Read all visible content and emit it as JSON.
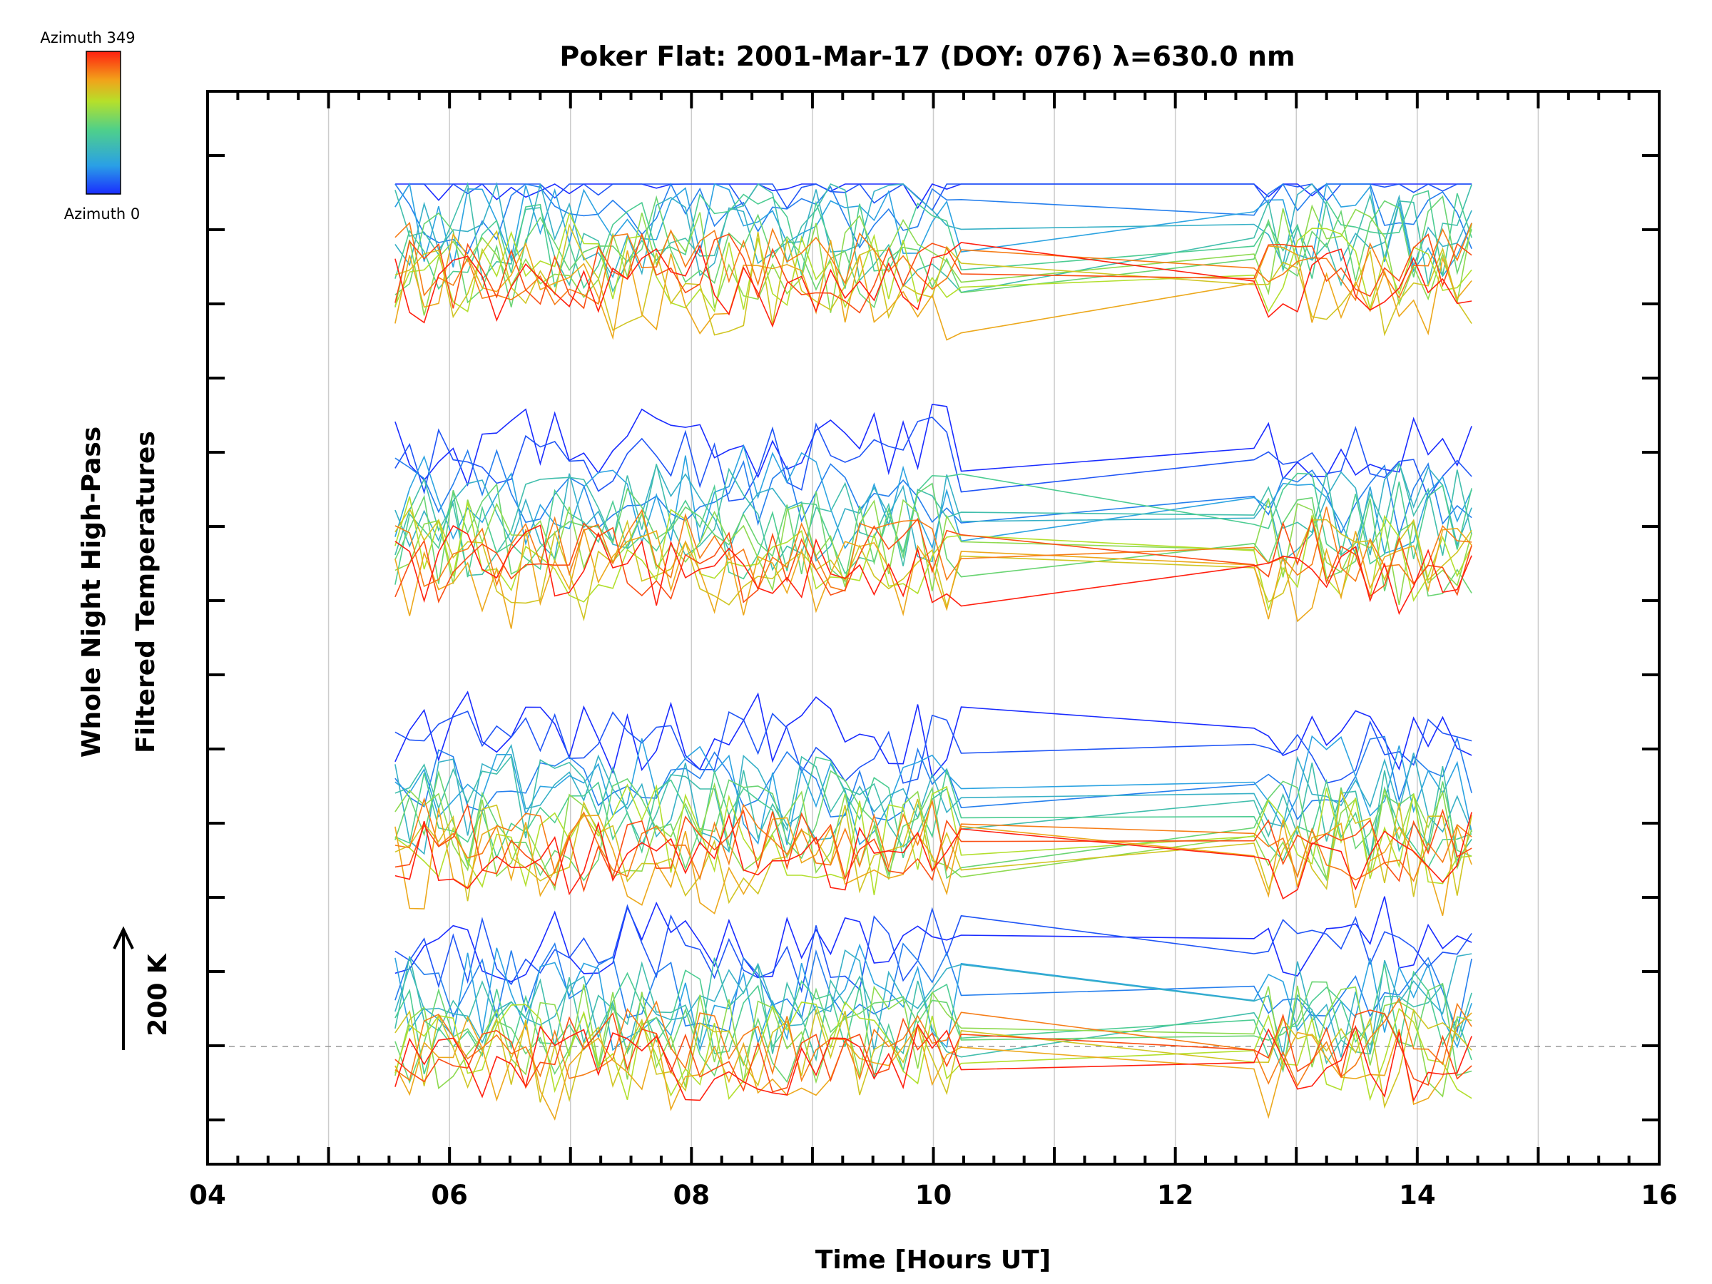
{
  "chart_data": {
    "type": "line",
    "title": "Poker Flat: 2001-Mar-17 (DOY: 076) λ=630.0 nm",
    "xlabel": "Time [Hours UT]",
    "ylabel": [
      "Whole Night High-Pass",
      "Filtered Temperatures"
    ],
    "xlim": [
      4,
      16
    ],
    "x_ticks": [
      "04",
      "06",
      "08",
      "10",
      "12",
      "14",
      "16"
    ],
    "grid": "vertical",
    "colorbar": {
      "top_label": "Azimuth 349",
      "bottom_label": "Azimuth 0",
      "placement": "top-left"
    },
    "scale_bar": {
      "label": "200 K"
    },
    "time_range": [
      5.55,
      14.55
    ],
    "data_gap": [
      10.3,
      12.65
    ],
    "series_count": 60
  },
  "colors": {
    "axis": "#000000",
    "grid": "#cccccc",
    "dashed": "#999999"
  }
}
